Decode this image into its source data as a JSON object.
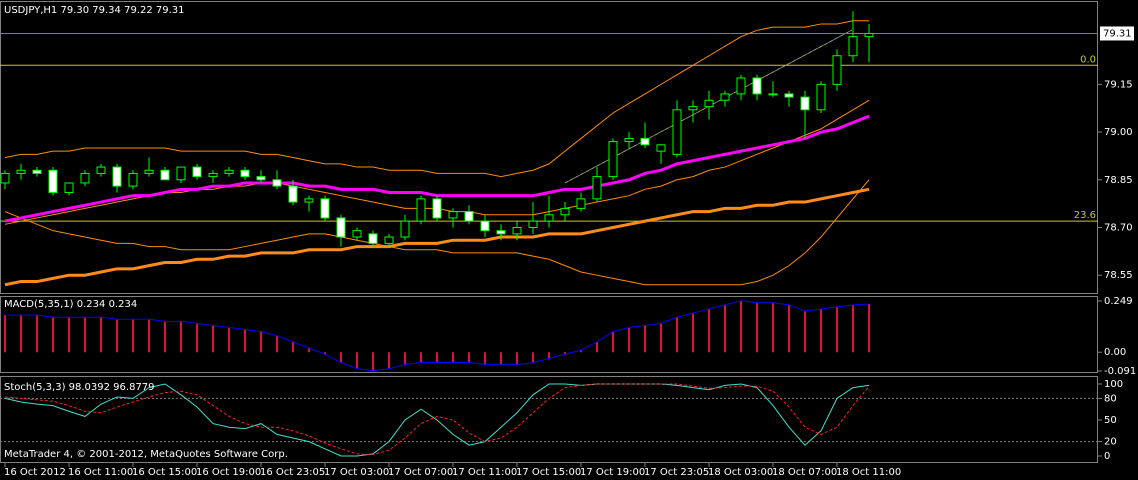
{
  "footer": "MetaTrader 4, © 2001-2012, MetaQuotes Software Corp.",
  "chart_data": [
    {
      "type": "candlestick",
      "title": "USDJPY,H1 79.30 79.34 79.22 79.31",
      "categories": [
        "16 Oct 2012",
        null,
        null,
        null,
        "16 Oct 11:00",
        null,
        null,
        null,
        "16 Oct 15:00",
        null,
        null,
        null,
        "16 Oct 19:00",
        null,
        null,
        null,
        "16 Oct 23:05",
        null,
        null,
        null,
        "17 Oct 03:00",
        null,
        null,
        null,
        "17 Oct 07:00",
        null,
        null,
        null,
        "17 Oct 11:00",
        null,
        null,
        null,
        "17 Oct 15:00",
        null,
        null,
        null,
        "17 Oct 19:00",
        null,
        null,
        null,
        "17 Oct 23:05",
        null,
        null,
        null,
        "18 Oct 03:00",
        null,
        null,
        null,
        "18 Oct 07:00",
        null,
        null,
        null,
        "18 Oct 11:00",
        null,
        null
      ],
      "ohlc": [
        [
          78.84,
          78.88,
          78.82,
          78.87
        ],
        [
          78.87,
          78.9,
          78.85,
          78.88
        ],
        [
          78.88,
          78.89,
          78.86,
          78.87
        ],
        [
          78.88,
          78.89,
          78.8,
          78.81
        ],
        [
          78.81,
          78.84,
          78.8,
          78.84
        ],
        [
          78.84,
          78.88,
          78.83,
          78.87
        ],
        [
          78.87,
          78.9,
          78.86,
          78.89
        ],
        [
          78.89,
          78.9,
          78.81,
          78.83
        ],
        [
          78.83,
          78.88,
          78.82,
          78.87
        ],
        [
          78.87,
          78.92,
          78.86,
          78.88
        ],
        [
          78.88,
          78.89,
          78.85,
          78.85
        ],
        [
          78.85,
          78.89,
          78.84,
          78.89
        ],
        [
          78.89,
          78.9,
          78.85,
          78.86
        ],
        [
          78.86,
          78.88,
          78.84,
          78.87
        ],
        [
          78.87,
          78.89,
          78.86,
          78.88
        ],
        [
          78.88,
          78.89,
          78.85,
          78.86
        ],
        [
          78.86,
          78.88,
          78.84,
          78.85
        ],
        [
          78.85,
          78.88,
          78.82,
          78.83
        ],
        [
          78.83,
          78.85,
          78.77,
          78.78
        ],
        [
          78.78,
          78.8,
          78.75,
          78.79
        ],
        [
          78.79,
          78.8,
          78.72,
          78.73
        ],
        [
          78.73,
          78.74,
          78.64,
          78.67
        ],
        [
          78.67,
          78.7,
          78.66,
          78.69
        ],
        [
          78.68,
          78.69,
          78.64,
          78.65
        ],
        [
          78.65,
          78.68,
          78.64,
          78.67
        ],
        [
          78.67,
          78.74,
          78.66,
          78.72
        ],
        [
          78.72,
          78.8,
          78.71,
          78.79
        ],
        [
          78.79,
          78.8,
          78.72,
          78.73
        ],
        [
          78.73,
          78.76,
          78.7,
          78.75
        ],
        [
          78.75,
          78.77,
          78.71,
          78.72
        ],
        [
          78.72,
          78.74,
          78.67,
          78.69
        ],
        [
          78.69,
          78.71,
          78.66,
          78.68
        ],
        [
          78.68,
          78.72,
          78.66,
          78.7
        ],
        [
          78.7,
          78.78,
          78.68,
          78.72
        ],
        [
          78.72,
          78.8,
          78.7,
          78.74
        ],
        [
          78.74,
          78.78,
          78.72,
          78.76
        ],
        [
          78.76,
          78.81,
          78.75,
          78.79
        ],
        [
          78.79,
          78.89,
          78.78,
          78.86
        ],
        [
          78.86,
          78.98,
          78.85,
          78.97
        ],
        [
          78.97,
          79.0,
          78.95,
          78.98
        ],
        [
          78.98,
          79.03,
          78.95,
          78.96
        ],
        [
          78.94,
          78.96,
          78.9,
          78.96
        ],
        [
          78.93,
          79.1,
          78.92,
          79.07
        ],
        [
          79.07,
          79.1,
          79.03,
          79.08
        ],
        [
          79.08,
          79.13,
          79.04,
          79.1
        ],
        [
          79.1,
          79.13,
          79.08,
          79.12
        ],
        [
          79.12,
          79.18,
          79.1,
          79.17
        ],
        [
          79.17,
          79.18,
          79.1,
          79.12
        ],
        [
          79.12,
          79.16,
          79.11,
          79.12
        ],
        [
          79.12,
          79.13,
          79.08,
          79.11
        ],
        [
          79.11,
          79.13,
          78.98,
          79.07
        ],
        [
          79.07,
          79.16,
          79.06,
          79.15
        ],
        [
          79.15,
          79.26,
          79.13,
          79.24
        ],
        [
          79.24,
          79.38,
          79.22,
          79.3
        ],
        [
          79.3,
          79.34,
          79.22,
          79.31
        ]
      ],
      "bull_color": "#000000",
      "bear_color": "#ffffff",
      "outline_color": "#00ff00",
      "overlays": [
        {
          "color": "#ff8c00",
          "width": 1,
          "values": [
            78.92,
            78.93,
            78.93,
            78.94,
            78.94,
            78.95,
            78.95,
            78.95,
            78.95,
            78.95,
            78.95,
            78.94,
            78.94,
            78.94,
            78.94,
            78.94,
            78.93,
            78.93,
            78.92,
            78.91,
            78.9,
            78.9,
            78.89,
            78.89,
            78.88,
            78.88,
            78.88,
            78.87,
            78.87,
            78.87,
            78.87,
            78.86,
            78.87,
            78.88,
            78.9,
            78.94,
            78.98,
            79.02,
            79.06,
            79.09,
            79.12,
            79.15,
            79.18,
            79.21,
            79.24,
            79.27,
            79.3,
            79.32,
            79.33,
            79.33,
            79.33,
            79.34,
            79.34,
            79.35,
            79.35
          ]
        },
        {
          "color": "#ff8c00",
          "width": 1,
          "values": [
            78.71,
            78.72,
            78.73,
            78.74,
            78.75,
            78.76,
            78.77,
            78.78,
            78.79,
            78.8,
            78.81,
            78.81,
            78.82,
            78.82,
            78.83,
            78.83,
            78.84,
            78.84,
            78.83,
            78.82,
            78.81,
            78.8,
            78.79,
            78.78,
            78.77,
            78.76,
            78.76,
            78.76,
            78.75,
            78.75,
            78.74,
            78.74,
            78.74,
            78.74,
            78.75,
            78.76,
            78.77,
            78.78,
            78.79,
            78.8,
            78.82,
            78.83,
            78.85,
            78.86,
            78.88,
            78.89,
            78.91,
            78.93,
            78.95,
            78.97,
            78.99,
            79.01,
            79.04,
            79.07,
            79.1
          ]
        },
        {
          "color": "#ff8c00",
          "width": 1,
          "values": [
            78.75,
            78.73,
            78.71,
            78.69,
            78.68,
            78.67,
            78.66,
            78.65,
            78.65,
            78.64,
            78.64,
            78.63,
            78.63,
            78.63,
            78.63,
            78.64,
            78.65,
            78.66,
            78.67,
            78.68,
            78.68,
            78.67,
            78.66,
            78.65,
            78.64,
            78.63,
            78.63,
            78.63,
            78.62,
            78.62,
            78.62,
            78.62,
            78.62,
            78.61,
            78.6,
            78.58,
            78.56,
            78.55,
            78.54,
            78.53,
            78.52,
            78.52,
            78.52,
            78.52,
            78.52,
            78.52,
            78.52,
            78.53,
            78.55,
            78.58,
            78.62,
            78.67,
            78.73,
            78.79,
            78.85
          ]
        },
        {
          "color": "#ff00ff",
          "width": 3,
          "values": [
            78.72,
            78.73,
            78.74,
            78.75,
            78.76,
            78.77,
            78.78,
            78.79,
            78.8,
            78.8,
            78.81,
            78.82,
            78.82,
            78.83,
            78.83,
            78.84,
            78.84,
            78.84,
            78.84,
            78.83,
            78.83,
            78.82,
            78.82,
            78.82,
            78.81,
            78.81,
            78.81,
            78.8,
            78.8,
            78.8,
            78.8,
            78.8,
            78.8,
            78.8,
            78.81,
            78.82,
            78.82,
            78.83,
            78.84,
            78.85,
            78.87,
            78.88,
            78.9,
            78.91,
            78.92,
            78.93,
            78.94,
            78.95,
            78.96,
            78.97,
            78.98,
            79.0,
            79.01,
            79.03,
            79.05
          ]
        },
        {
          "color": "#ff8c1a",
          "width": 3,
          "values": [
            78.52,
            78.53,
            78.53,
            78.54,
            78.55,
            78.55,
            78.56,
            78.57,
            78.57,
            78.58,
            78.59,
            78.59,
            78.6,
            78.6,
            78.61,
            78.61,
            78.62,
            78.62,
            78.62,
            78.63,
            78.63,
            78.63,
            78.64,
            78.64,
            78.64,
            78.65,
            78.65,
            78.65,
            78.66,
            78.66,
            78.66,
            78.67,
            78.67,
            78.67,
            78.68,
            78.68,
            78.68,
            78.69,
            78.7,
            78.71,
            78.72,
            78.73,
            78.74,
            78.75,
            78.75,
            78.76,
            78.76,
            78.77,
            78.77,
            78.78,
            78.78,
            78.79,
            78.8,
            78.81,
            78.82
          ]
        }
      ],
      "fib_color": "#c8c832",
      "fib_levels": [
        {
          "level": "0.0",
          "price": 79.21
        },
        {
          "level": "23.6",
          "price": 78.72
        }
      ],
      "last_price": 79.31,
      "ylim": [
        78.494,
        79.409
      ],
      "yticks": [
        {
          "value": 78.55,
          "label": "78.55"
        },
        {
          "value": 78.7,
          "label": "78.70"
        },
        {
          "value": 78.85,
          "label": "78.85"
        },
        {
          "value": 79,
          "label": "79.00"
        },
        {
          "value": 79.15,
          "label": "79.15"
        }
      ]
    },
    {
      "type": "histogram",
      "title": "MACD(5,35,1) 0.234 0.234",
      "color": "#dc143c",
      "line_color": "#0000ff",
      "values": [
        0.18,
        0.18,
        0.18,
        0.17,
        0.17,
        0.17,
        0.17,
        0.16,
        0.16,
        0.16,
        0.15,
        0.15,
        0.14,
        0.13,
        0.12,
        0.11,
        0.1,
        0.08,
        0.05,
        0.02,
        -0.01,
        -0.05,
        -0.08,
        -0.09,
        -0.08,
        -0.06,
        -0.05,
        -0.05,
        -0.05,
        -0.05,
        -0.06,
        -0.06,
        -0.06,
        -0.05,
        -0.03,
        -0.01,
        0.01,
        0.05,
        0.1,
        0.12,
        0.13,
        0.14,
        0.17,
        0.19,
        0.21,
        0.23,
        0.25,
        0.24,
        0.24,
        0.23,
        0.2,
        0.21,
        0.22,
        0.23,
        0.234
      ],
      "ylim": [
        -0.096,
        0.268
      ],
      "yticks": [
        -0.091,
        {
          "value": 0,
          "label": "0.00"
        },
        0.249
      ]
    },
    {
      "type": "line",
      "title": "Stoch(5,3,3) 98.0392 96.8779",
      "series": [
        {
          "color": "#40e0d0",
          "dash": false,
          "values": [
            80,
            75,
            72,
            70,
            62,
            55,
            72,
            82,
            80,
            95,
            100,
            85,
            68,
            45,
            40,
            38,
            45,
            30,
            25,
            20,
            10,
            0,
            0,
            3,
            20,
            50,
            65,
            50,
            30,
            15,
            20,
            40,
            60,
            85,
            100,
            100,
            98,
            100,
            100,
            100,
            100,
            100,
            98,
            95,
            92,
            98,
            100,
            95,
            70,
            40,
            15,
            35,
            80,
            95,
            98.0392
          ]
        },
        {
          "color": "#ff2020",
          "dash": true,
          "values": [
            82,
            80,
            78,
            76,
            70,
            62,
            60,
            68,
            75,
            82,
            88,
            90,
            85,
            70,
            55,
            45,
            40,
            40,
            35,
            28,
            18,
            10,
            3,
            2,
            8,
            25,
            45,
            55,
            50,
            32,
            20,
            25,
            40,
            60,
            80,
            95,
            98,
            100,
            100,
            100,
            100,
            100,
            100,
            97,
            94,
            95,
            97,
            97,
            90,
            68,
            40,
            30,
            40,
            70,
            96.8779
          ]
        }
      ],
      "levels": [
        80,
        20
      ],
      "ylim": [
        -9.7,
        109.7
      ],
      "yticks": [
        0,
        20,
        50,
        80,
        100
      ]
    }
  ]
}
